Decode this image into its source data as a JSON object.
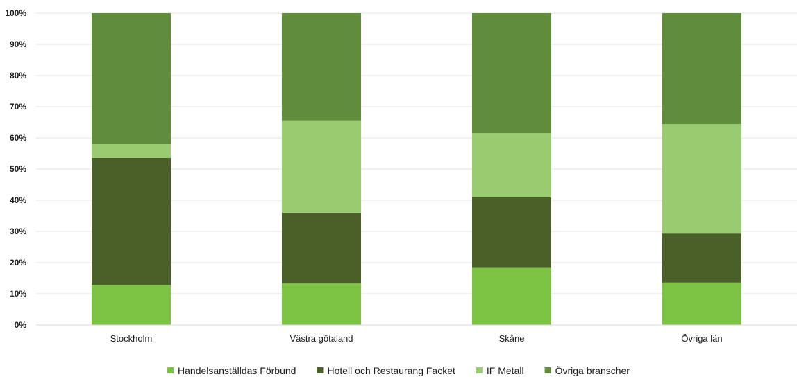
{
  "chart_data": {
    "type": "bar",
    "stacked": true,
    "categories": [
      "Stockholm",
      "Västra götaland",
      "Skåne",
      "Övriga län"
    ],
    "series": [
      {
        "name": "Handelsanställdas Förbund",
        "color": "#7cc243",
        "values": [
          12.8,
          13.3,
          18.3,
          13.6
        ]
      },
      {
        "name": "Hotell och Restaurang Facket",
        "color": "#4b5f29",
        "values": [
          40.8,
          22.7,
          22.6,
          15.7
        ]
      },
      {
        "name": "IF Metall",
        "color": "#99cc70",
        "values": [
          4.4,
          29.6,
          20.6,
          35.1
        ]
      },
      {
        "name": "Övriga branscher",
        "color": "#5f8d3c",
        "values": [
          42.0,
          34.4,
          38.5,
          35.6
        ]
      }
    ],
    "y_ticks": [
      "0%",
      "10%",
      "20%",
      "30%",
      "40%",
      "50%",
      "60%",
      "70%",
      "80%",
      "90%",
      "100%"
    ],
    "ylim": [
      0,
      100
    ],
    "grid": true,
    "legend_position": "bottom"
  }
}
